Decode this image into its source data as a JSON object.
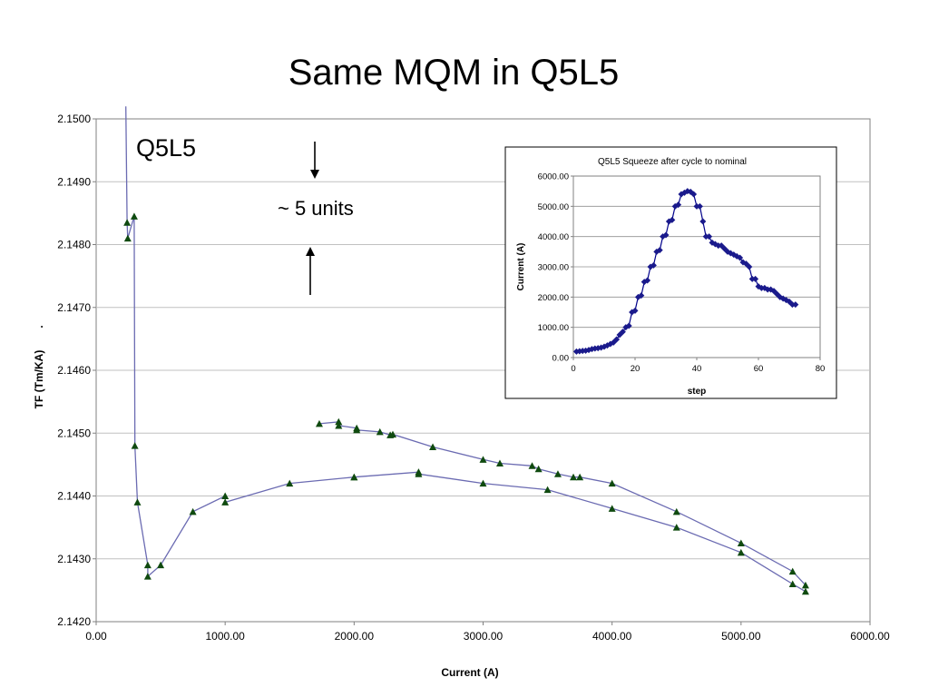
{
  "slide": {
    "title": "Same MQM in Q5L5"
  },
  "chart_data": [
    {
      "type": "line",
      "xlabel": "Current (A)",
      "ylabel": "TF (Tm/KA)",
      "xlim": [
        0,
        6000
      ],
      "ylim": [
        2.142,
        2.15
      ],
      "x_ticks": [
        "0.00",
        "1000.00",
        "2000.00",
        "3000.00",
        "4000.00",
        "5000.00",
        "6000.00"
      ],
      "y_ticks": [
        "2.1420",
        "2.1430",
        "2.1440",
        "2.1450",
        "2.1460",
        "2.1470",
        "2.1480",
        "2.1490",
        "2.1500"
      ],
      "grid": "horizontal",
      "colors": {
        "line": "#6b6bb2",
        "marker": "#0f4a0f",
        "axis": "#808080",
        "grid": "#c0c0c0"
      },
      "annotations": {
        "label": "Q5L5",
        "units_text": "~ 5 units",
        "dot": "."
      },
      "series": [
        {
          "points": [
            [
              230,
              2.1502
            ],
            [
              240,
              2.14835
            ],
            [
              245,
              2.1481
            ],
            [
              295,
              2.14845
            ],
            [
              300,
              2.1448
            ],
            [
              320,
              2.1439
            ],
            [
              400,
              2.1429
            ],
            [
              400,
              2.14272
            ],
            [
              500,
              2.1429
            ],
            [
              750,
              2.14375
            ],
            [
              1000,
              2.144
            ],
            [
              1000,
              2.1439
            ],
            [
              1500,
              2.1442
            ],
            [
              2000,
              2.1443
            ],
            [
              2000,
              2.1443
            ],
            [
              2500,
              2.14438
            ],
            [
              2500,
              2.14435
            ],
            [
              3000,
              2.1442
            ],
            [
              3500,
              2.1441
            ],
            [
              4000,
              2.1438
            ],
            [
              4500,
              2.1435
            ],
            [
              5000,
              2.1431
            ],
            [
              5400,
              2.1426
            ],
            [
              5500,
              2.14248
            ]
          ]
        },
        {
          "points": [
            [
              1730,
              2.14515
            ],
            [
              1880,
              2.14518
            ],
            [
              1880,
              2.14512
            ],
            [
              2020,
              2.14508
            ],
            [
              2020,
              2.14505
            ],
            [
              2200,
              2.14502
            ],
            [
              2280,
              2.14497
            ],
            [
              2300,
              2.14498
            ],
            [
              2610,
              2.14478
            ],
            [
              3000,
              2.14458
            ],
            [
              3130,
              2.14452
            ],
            [
              3380,
              2.14448
            ],
            [
              3430,
              2.14443
            ],
            [
              3580,
              2.14435
            ],
            [
              3700,
              2.1443
            ],
            [
              3750,
              2.1443
            ],
            [
              4000,
              2.1442
            ],
            [
              4500,
              2.14375
            ],
            [
              5000,
              2.14325
            ],
            [
              5400,
              2.1428
            ],
            [
              5500,
              2.14258
            ]
          ]
        }
      ]
    },
    {
      "type": "line",
      "title": "Q5L5 Squeeze after cycle to nominal",
      "xlabel": "step",
      "ylabel": "Current (A)",
      "xlim": [
        0,
        80
      ],
      "ylim": [
        0,
        6000
      ],
      "x_ticks": [
        "0",
        "20",
        "40",
        "60",
        "80"
      ],
      "y_ticks": [
        "0.00",
        "1000.00",
        "2000.00",
        "3000.00",
        "4000.00",
        "5000.00",
        "6000.00"
      ],
      "grid": "horizontal",
      "colors": {
        "line": "#00008b",
        "marker": "#1a1a8c"
      },
      "series": [
        {
          "x": [
            1,
            2,
            3,
            4,
            5,
            6,
            7,
            8,
            9,
            10,
            11,
            12,
            13,
            14,
            15,
            16,
            17,
            18,
            19,
            20,
            21,
            22,
            23,
            24,
            25,
            26,
            27,
            28,
            29,
            30,
            31,
            32,
            33,
            34,
            35,
            36,
            37,
            38,
            39,
            40,
            41,
            42,
            43,
            44,
            45,
            46,
            47,
            48,
            49,
            50,
            51,
            52,
            53,
            54,
            55,
            56,
            57,
            58,
            59,
            60,
            61,
            62,
            63,
            64,
            65,
            66,
            67,
            68,
            69,
            70,
            71,
            72
          ],
          "y": [
            200,
            210,
            220,
            230,
            250,
            280,
            300,
            310,
            330,
            360,
            400,
            450,
            500,
            600,
            750,
            850,
            1000,
            1050,
            1500,
            1550,
            2000,
            2050,
            2500,
            2550,
            3000,
            3050,
            3500,
            3550,
            4000,
            4050,
            4500,
            4550,
            5000,
            5050,
            5400,
            5450,
            5500,
            5480,
            5400,
            5000,
            5000,
            4500,
            4000,
            4000,
            3800,
            3750,
            3700,
            3700,
            3600,
            3500,
            3450,
            3400,
            3350,
            3300,
            3150,
            3100,
            3000,
            2600,
            2600,
            2350,
            2300,
            2300,
            2250,
            2250,
            2200,
            2100,
            2000,
            1950,
            1900,
            1850,
            1750,
            1750
          ]
        }
      ]
    }
  ]
}
